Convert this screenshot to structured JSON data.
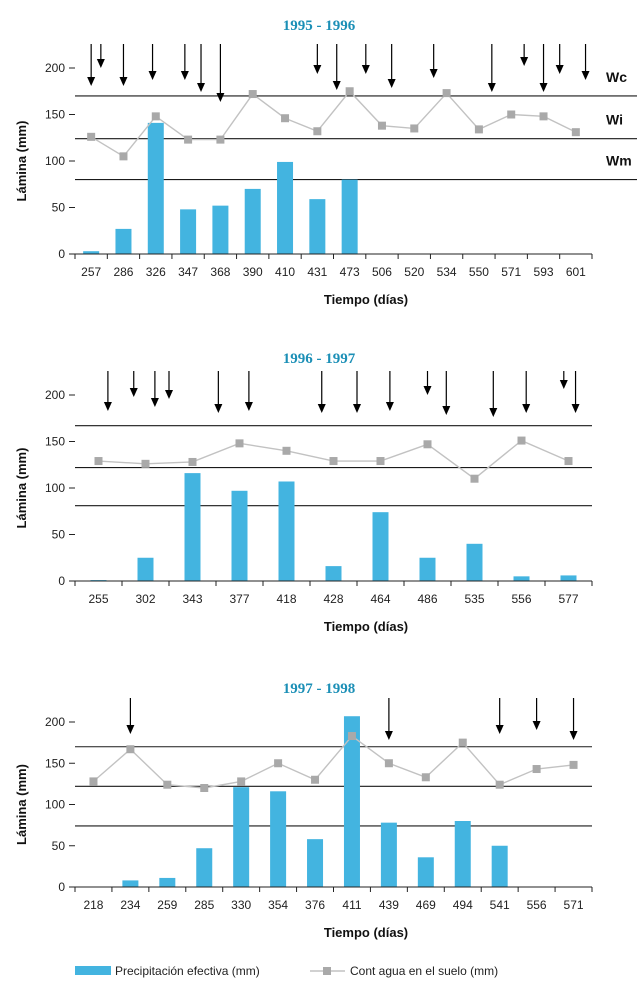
{
  "colors": {
    "title": "#1b8fb6",
    "bar": "#43b4e0",
    "line": "#c2c2c2",
    "marker": "#a9a9a9",
    "axis": "#222222"
  },
  "legend": {
    "bar_label": "Precipitación efectiva (mm)",
    "line_label": "Cont agua en el suelo (mm)"
  },
  "chart_data": [
    {
      "type": "bar",
      "title": "1995 - 1996",
      "xlabel": "Tiempo (días)",
      "ylabel": "Lámina (mm)",
      "ylim": [
        0,
        200
      ],
      "yticks": [
        0,
        50,
        100,
        150,
        200
      ],
      "categories": [
        "257",
        "286",
        "326",
        "347",
        "368",
        "390",
        "410",
        "431",
        "473",
        "506",
        "520",
        "534",
        "550",
        "571",
        "593",
        "601"
      ],
      "series": [
        {
          "name": "Precipitación efectiva (mm)",
          "kind": "bar",
          "values": [
            3,
            27,
            141,
            48,
            52,
            70,
            99,
            59,
            80,
            null,
            null,
            null,
            null,
            null,
            null,
            null
          ]
        },
        {
          "name": "Cont agua en el suelo (mm)",
          "kind": "line",
          "values": [
            126,
            105,
            148,
            123,
            123,
            172,
            146,
            132,
            175,
            138,
            135,
            173,
            134,
            150,
            148,
            131
          ]
        }
      ],
      "thresholds": [
        {
          "label": "Wc",
          "value": 170
        },
        {
          "label": "Wi",
          "value": 124
        },
        {
          "label": "Wm",
          "value": 80
        }
      ],
      "arrows": [
        {
          "x": 0.0,
          "len": 42
        },
        {
          "x": 0.3,
          "len": 24
        },
        {
          "x": 1.0,
          "len": 42
        },
        {
          "x": 1.9,
          "len": 36
        },
        {
          "x": 2.9,
          "len": 36
        },
        {
          "x": 3.4,
          "len": 48
        },
        {
          "x": 4.0,
          "len": 58
        },
        {
          "x": 7.0,
          "len": 30
        },
        {
          "x": 7.6,
          "len": 46
        },
        {
          "x": 8.5,
          "len": 30
        },
        {
          "x": 9.3,
          "len": 44
        },
        {
          "x": 10.6,
          "len": 34
        },
        {
          "x": 12.4,
          "len": 48
        },
        {
          "x": 13.4,
          "len": 22
        },
        {
          "x": 14.0,
          "len": 48
        },
        {
          "x": 14.5,
          "len": 30
        },
        {
          "x": 15.3,
          "len": 36
        }
      ]
    },
    {
      "type": "bar",
      "title": "1996 - 1997",
      "xlabel": "Tiempo (días)",
      "ylabel": "Lámina (mm)",
      "ylim": [
        0,
        200
      ],
      "yticks": [
        0,
        50,
        100,
        150,
        200
      ],
      "categories": [
        "255",
        "302",
        "343",
        "377",
        "418",
        "428",
        "464",
        "486",
        "535",
        "556",
        "577"
      ],
      "series": [
        {
          "name": "Precipitación efectiva (mm)",
          "kind": "bar",
          "values": [
            1,
            25,
            116,
            97,
            107,
            16,
            74,
            25,
            40,
            5,
            6
          ]
        },
        {
          "name": "Cont agua en el suelo (mm)",
          "kind": "line",
          "values": [
            129,
            126,
            128,
            148,
            140,
            129,
            129,
            147,
            110,
            151,
            129
          ]
        }
      ],
      "thresholds": [
        {
          "label": "",
          "value": 167
        },
        {
          "label": "",
          "value": 122
        },
        {
          "label": "",
          "value": 81
        }
      ],
      "arrows": [
        {
          "x": 0.2,
          "len": 40
        },
        {
          "x": 0.75,
          "len": 26
        },
        {
          "x": 1.2,
          "len": 36
        },
        {
          "x": 1.5,
          "len": 28
        },
        {
          "x": 2.55,
          "len": 42
        },
        {
          "x": 3.2,
          "len": 40
        },
        {
          "x": 4.75,
          "len": 42
        },
        {
          "x": 5.5,
          "len": 42
        },
        {
          "x": 6.2,
          "len": 40
        },
        {
          "x": 7.0,
          "len": 24
        },
        {
          "x": 7.4,
          "len": 44
        },
        {
          "x": 8.4,
          "len": 46
        },
        {
          "x": 9.1,
          "len": 42
        },
        {
          "x": 9.9,
          "len": 18
        },
        {
          "x": 10.15,
          "len": 42
        }
      ]
    },
    {
      "type": "bar",
      "title": "1997 - 1998",
      "xlabel": "Tiempo (días)",
      "ylabel": "Lámina (mm)",
      "ylim": [
        0,
        200
      ],
      "yticks": [
        0,
        50,
        100,
        150,
        200
      ],
      "categories": [
        "218",
        "234",
        "259",
        "285",
        "330",
        "354",
        "376",
        "411",
        "439",
        "469",
        "494",
        "541",
        "556",
        "571"
      ],
      "series": [
        {
          "name": "Precipitación efectiva (mm)",
          "kind": "bar",
          "values": [
            null,
            8,
            11,
            47,
            121,
            116,
            58,
            207,
            78,
            36,
            80,
            50,
            null,
            null
          ]
        },
        {
          "name": "Cont agua en el suelo (mm)",
          "kind": "line",
          "values": [
            128,
            167,
            124,
            120,
            128,
            150,
            130,
            183,
            150,
            133,
            175,
            124,
            143,
            148
          ]
        }
      ],
      "thresholds": [
        {
          "label": "",
          "value": 170
        },
        {
          "label": "",
          "value": 122
        },
        {
          "label": "",
          "value": 74
        }
      ],
      "arrows": [
        {
          "x": 1.0,
          "len": 36
        },
        {
          "x": 8.0,
          "len": 42
        },
        {
          "x": 11.0,
          "len": 36
        },
        {
          "x": 12.0,
          "len": 32
        },
        {
          "x": 13.0,
          "len": 42
        }
      ]
    }
  ]
}
